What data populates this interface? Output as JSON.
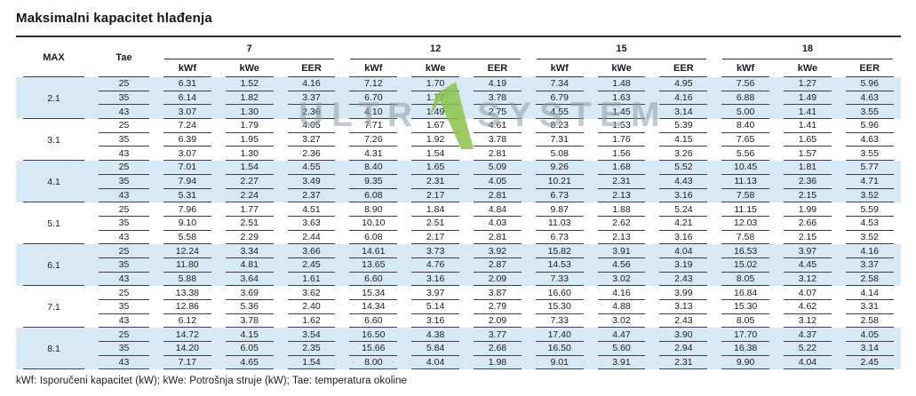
{
  "title": "Maksimalni kapacitet hlađenja",
  "footer": "kWf: Isporučeni kapacitet (kW); kWe: Potrošnja struje (kW); Tae: temperatura okoline",
  "watermark": {
    "left": "ULTR",
    "right": "SYSTEM"
  },
  "colors": {
    "band_blue": "#d8e9f6",
    "logo_green": "#8bc34a"
  },
  "table": {
    "col1_header": "MAX",
    "col2_header": "Tae",
    "col_groups": [
      "7",
      "12",
      "15",
      "18"
    ],
    "sub_headers": [
      "kWf",
      "kWe",
      "EER"
    ],
    "groups": [
      {
        "max": "2.1",
        "rows": [
          {
            "tae": "25",
            "values": [
              "6.31",
              "1.52",
              "4.16",
              "7.12",
              "1.70",
              "4.19",
              "7.34",
              "1.48",
              "4.95",
              "7.56",
              "1.27",
              "5.96"
            ]
          },
          {
            "tae": "35",
            "values": [
              "6.14",
              "1.82",
              "3.37",
              "6.70",
              "1.77",
              "3.78",
              "6.79",
              "1.63",
              "4.16",
              "6.88",
              "1.49",
              "4.63"
            ]
          },
          {
            "tae": "43",
            "values": [
              "3.07",
              "1.30",
              "2.36",
              "4.10",
              "1.49",
              "2.75",
              "4.55",
              "1.45",
              "3.14",
              "5.00",
              "1.41",
              "3.55"
            ]
          }
        ]
      },
      {
        "max": "3.1",
        "rows": [
          {
            "tae": "25",
            "values": [
              "7.24",
              "1.79",
              "4.05",
              "7.71",
              "1.67",
              "4.61",
              "8.23",
              "1.53",
              "5.39",
              "8.40",
              "1.41",
              "5.96"
            ]
          },
          {
            "tae": "35",
            "values": [
              "6.39",
              "1.95",
              "3.27",
              "7.26",
              "1.92",
              "3.78",
              "7.31",
              "1.76",
              "4.15",
              "7.65",
              "1.65",
              "4.63"
            ]
          },
          {
            "tae": "43",
            "values": [
              "3.07",
              "1.30",
              "2.36",
              "4.31",
              "1.54",
              "2.81",
              "5.08",
              "1.56",
              "3.26",
              "5.56",
              "1.57",
              "3.55"
            ]
          }
        ]
      },
      {
        "max": "4.1",
        "rows": [
          {
            "tae": "25",
            "values": [
              "7.01",
              "1.54",
              "4.55",
              "8.40",
              "1.65",
              "5.09",
              "9.26",
              "1.68",
              "5.52",
              "10.45",
              "1.81",
              "5.77"
            ]
          },
          {
            "tae": "35",
            "values": [
              "7.94",
              "2.27",
              "3.49",
              "9.35",
              "2.31",
              "4.05",
              "10.21",
              "2.31",
              "4.43",
              "11.13",
              "2.36",
              "4.71"
            ]
          },
          {
            "tae": "43",
            "values": [
              "5.31",
              "2.24",
              "2.37",
              "6.08",
              "2.17",
              "2.81",
              "6.73",
              "2.13",
              "3.16",
              "7.58",
              "2.15",
              "3.52"
            ]
          }
        ]
      },
      {
        "max": "5.1",
        "rows": [
          {
            "tae": "25",
            "values": [
              "7.96",
              "1.77",
              "4.51",
              "8.90",
              "1.84",
              "4.84",
              "9.87",
              "1.88",
              "5.24",
              "11.15",
              "1.99",
              "5.59"
            ]
          },
          {
            "tae": "35",
            "values": [
              "9.10",
              "2.51",
              "3.63",
              "10.10",
              "2.51",
              "4.03",
              "11.03",
              "2.62",
              "4.21",
              "12.03",
              "2.66",
              "4.53"
            ]
          },
          {
            "tae": "43",
            "values": [
              "5.58",
              "2.29",
              "2.44",
              "6.08",
              "2.17",
              "2.81",
              "6.73",
              "2.13",
              "3.16",
              "7.58",
              "2.15",
              "3.52"
            ]
          }
        ]
      },
      {
        "max": "6.1",
        "rows": [
          {
            "tae": "25",
            "values": [
              "12.24",
              "3.34",
              "3.66",
              "14.61",
              "3.73",
              "3.92",
              "15.82",
              "3.91",
              "4.04",
              "16.53",
              "3.97",
              "4.16"
            ]
          },
          {
            "tae": "35",
            "values": [
              "11.80",
              "4.81",
              "2.45",
              "13.65",
              "4.76",
              "2.87",
              "14.53",
              "4.56",
              "3.19",
              "15.02",
              "4.45",
              "3.37"
            ]
          },
          {
            "tae": "43",
            "values": [
              "5.88",
              "3.64",
              "1.61",
              "6.60",
              "3.16",
              "2.09",
              "7.33",
              "3.02",
              "2.43",
              "8.05",
              "3.12",
              "2.58"
            ]
          }
        ]
      },
      {
        "max": "7.1",
        "rows": [
          {
            "tae": "25",
            "values": [
              "13.38",
              "3.69",
              "3.62",
              "15.34",
              "3.97",
              "3.87",
              "16.60",
              "4.16",
              "3.99",
              "16.84",
              "4.07",
              "4.14"
            ]
          },
          {
            "tae": "35",
            "values": [
              "12.86",
              "5.36",
              "2.40",
              "14.34",
              "5.14",
              "2.79",
              "15.30",
              "4.88",
              "3.13",
              "15.30",
              "4.62",
              "3.31"
            ]
          },
          {
            "tae": "43",
            "values": [
              "6.12",
              "3.78",
              "1.62",
              "6.60",
              "3.16",
              "2.09",
              "7.33",
              "3.02",
              "2.43",
              "8.05",
              "3.12",
              "2.58"
            ]
          }
        ]
      },
      {
        "max": "8.1",
        "rows": [
          {
            "tae": "25",
            "values": [
              "14.72",
              "4.15",
              "3.54",
              "16.50",
              "4.38",
              "3.77",
              "17.40",
              "4.47",
              "3.90",
              "17.70",
              "4.37",
              "4.05"
            ]
          },
          {
            "tae": "35",
            "values": [
              "14.20",
              "6.05",
              "2.35",
              "15.66",
              "5.84",
              "2.68",
              "16.50",
              "5.60",
              "2.94",
              "16.38",
              "5.22",
              "3.14"
            ]
          },
          {
            "tae": "43",
            "values": [
              "7.17",
              "4.65",
              "1.54",
              "8.00",
              "4.04",
              "1.98",
              "9.01",
              "3.91",
              "2.31",
              "9.90",
              "4.04",
              "2.45"
            ]
          }
        ]
      }
    ]
  }
}
